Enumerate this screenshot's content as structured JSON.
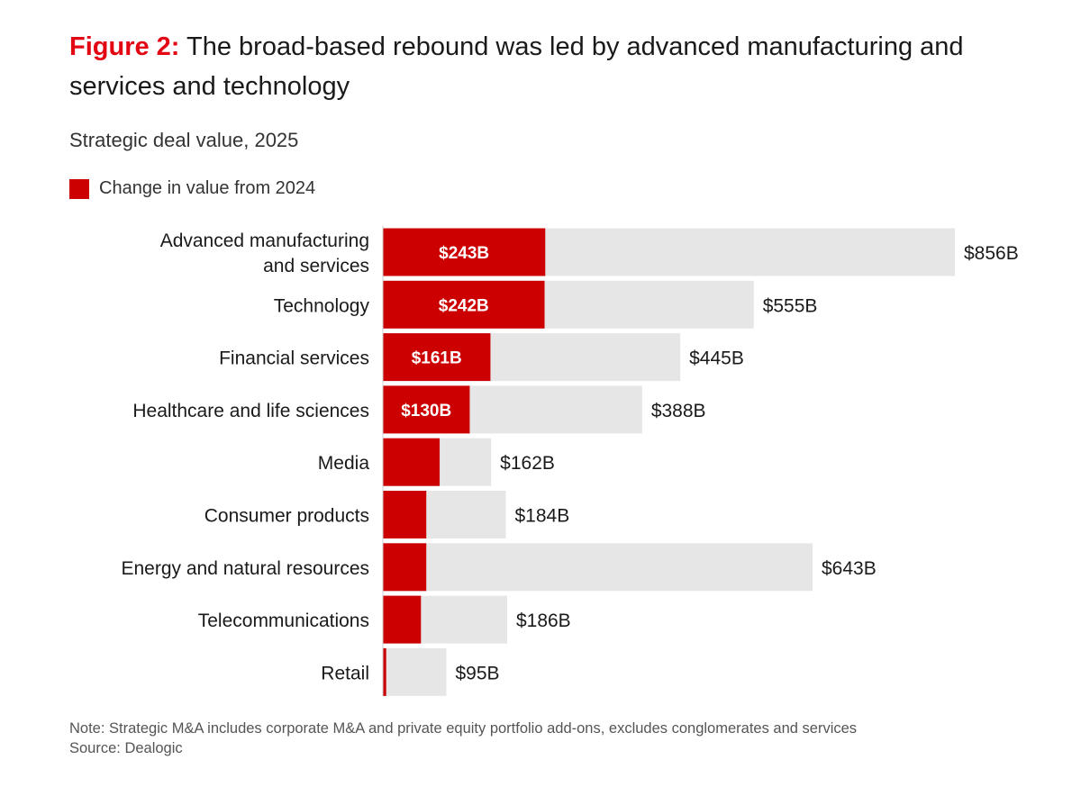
{
  "figure": {
    "label": "Figure 2:",
    "title": "The broad-based rebound was led by advanced manufacturing and services and technology"
  },
  "subtitle": "Strategic deal value, 2025",
  "legend_label": "Change in value from 2024",
  "colors": {
    "change": "#cc0000",
    "total": "#e6e6e6",
    "accent": "#e30613"
  },
  "chart_data": {
    "type": "bar",
    "orientation": "horizontal",
    "categories": [
      [
        "Advanced manufacturing",
        "and services"
      ],
      [
        "Technology"
      ],
      [
        "Financial services"
      ],
      [
        "Healthcare and life sciences"
      ],
      [
        "Media"
      ],
      [
        "Consumer products"
      ],
      [
        "Energy and natural resources"
      ],
      [
        "Telecommunications"
      ],
      [
        "Retail"
      ]
    ],
    "series": [
      {
        "name": "Change in value from 2024",
        "values": [
          243,
          242,
          161,
          130,
          85,
          65,
          65,
          57,
          5
        ]
      },
      {
        "values": [
          856,
          555,
          445,
          388,
          162,
          184,
          643,
          186,
          95
        ]
      }
    ],
    "value_labels": [
      "$856B",
      "$555B",
      "$445B",
      "$388B",
      "$162B",
      "$184B",
      "$643B",
      "$186B",
      "$95B"
    ],
    "change_labels": [
      "$243B",
      "$242B",
      "$161B",
      "$130B",
      "",
      "",
      "",
      "",
      ""
    ],
    "unit": "$B",
    "xlim": [
      0,
      856
    ]
  },
  "note": "Note: Strategic M&A includes corporate M&A and private equity portfolio add-ons, excludes conglomerates and services",
  "source": "Source: Dealogic"
}
